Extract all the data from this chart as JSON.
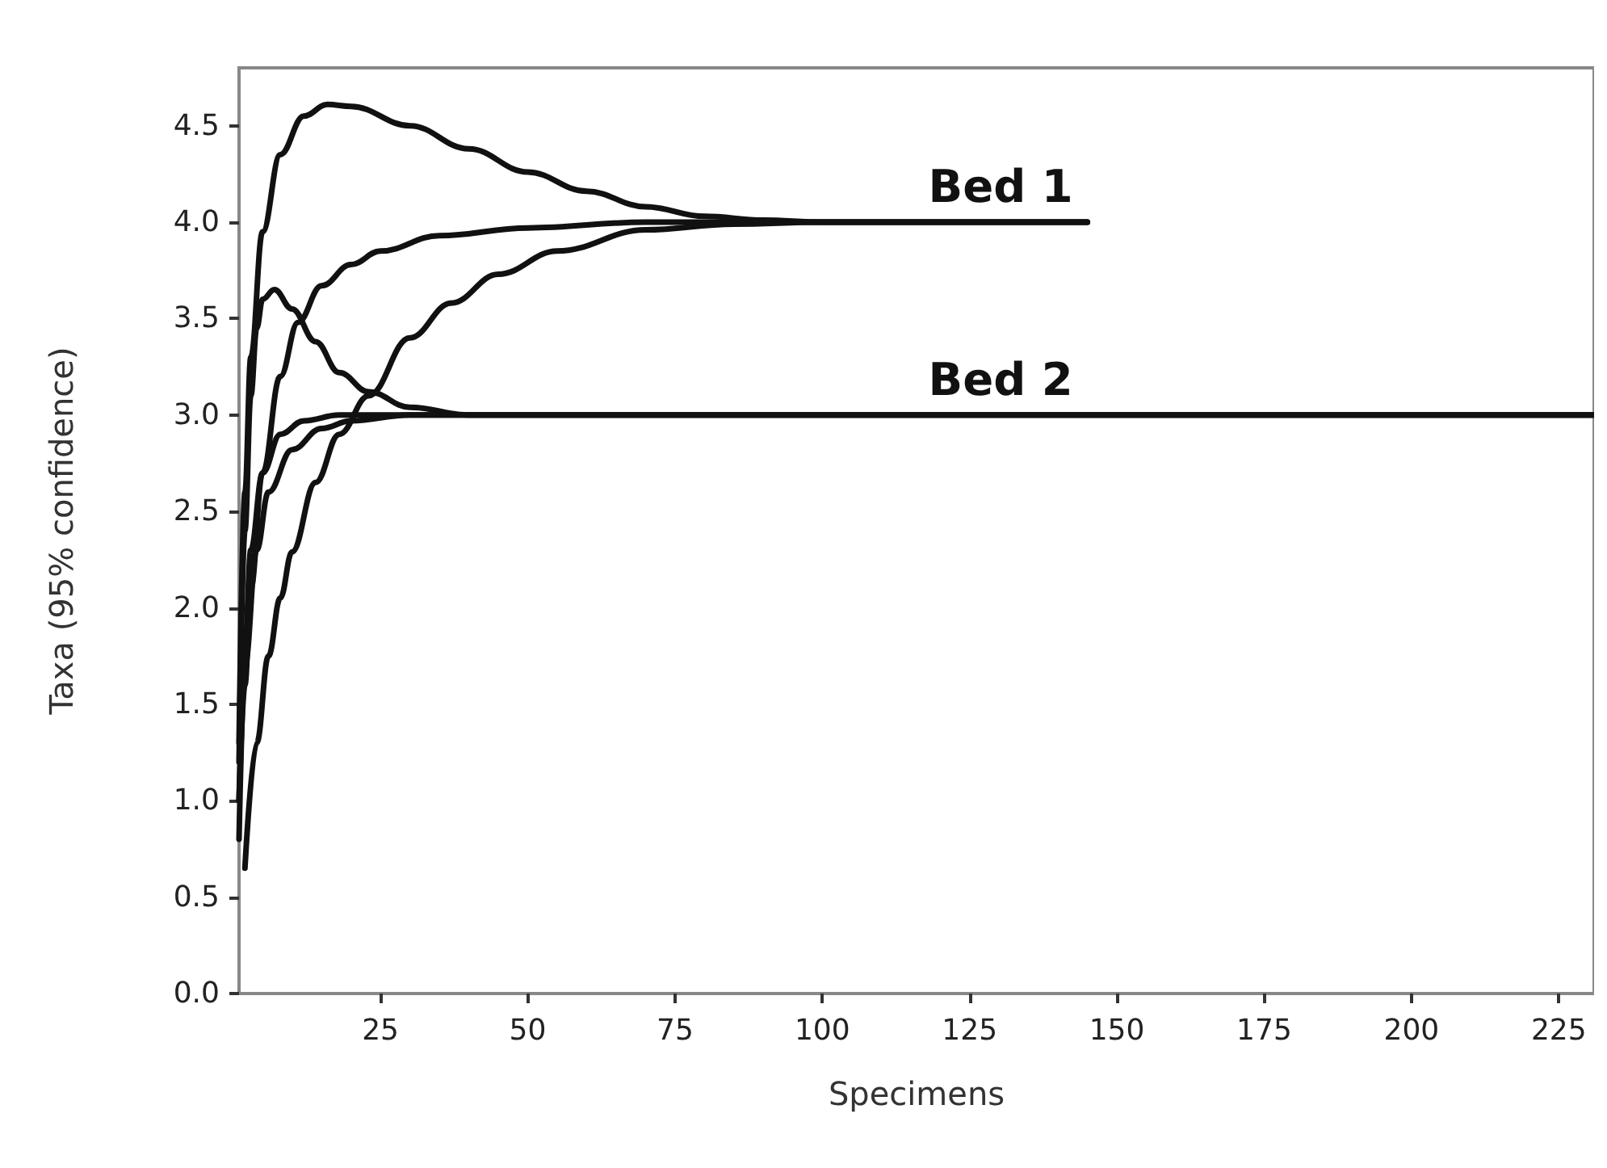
{
  "chart_data": {
    "type": "line",
    "xlabel": "Specimens",
    "ylabel": "Taxa (95% confidence)",
    "xlim": [
      1,
      231
    ],
    "xticks": [
      25,
      50,
      75,
      100,
      125,
      150,
      175,
      200,
      225
    ],
    "ylim": [
      0,
      4.8
    ],
    "yticks": [
      {
        "value": 0,
        "label": "0.0"
      },
      {
        "value": 0.5,
        "label": "0.5"
      },
      {
        "value": 1,
        "label": "1.0"
      },
      {
        "value": 1.5,
        "label": "1.5"
      },
      {
        "value": 2,
        "label": "2.0"
      },
      {
        "value": 2.5,
        "label": "2.5"
      },
      {
        "value": 3,
        "label": "3.0"
      },
      {
        "value": 3.5,
        "label": "3.5"
      },
      {
        "value": 4,
        "label": "4.0"
      },
      {
        "value": 4.5,
        "label": "4.5"
      }
    ],
    "marker": "none",
    "line_style": "solid",
    "series": [
      {
        "color": "#111111",
        "x": [
          1,
          2,
          3,
          5,
          8,
          12,
          16,
          20,
          30,
          40,
          50,
          60,
          70,
          80,
          90,
          100,
          145
        ],
        "values": [
          1.3,
          2.6,
          3.3,
          3.95,
          4.35,
          4.55,
          4.61,
          4.6,
          4.5,
          4.38,
          4.26,
          4.16,
          4.08,
          4.03,
          4.01,
          4.0,
          4.0
        ]
      },
      {
        "color": "#111111",
        "x": [
          1,
          2,
          3,
          5,
          8,
          11,
          15,
          20,
          25,
          35,
          50,
          70,
          145
        ],
        "values": [
          1.0,
          1.6,
          2.1,
          2.7,
          3.2,
          3.48,
          3.67,
          3.78,
          3.85,
          3.93,
          3.97,
          4.0,
          4.0
        ]
      },
      {
        "color": "#111111",
        "x": [
          2,
          4,
          6,
          8,
          10,
          14,
          18,
          23,
          30,
          37,
          45,
          55,
          70,
          85,
          100,
          145
        ],
        "values": [
          0.65,
          1.3,
          1.75,
          2.05,
          2.29,
          2.65,
          2.9,
          3.1,
          3.4,
          3.58,
          3.73,
          3.85,
          3.96,
          3.99,
          4.0,
          4.0
        ]
      },
      {
        "color": "#111111",
        "x": [
          1,
          2,
          3,
          4,
          5,
          7,
          10,
          14,
          18,
          23,
          30,
          40,
          231
        ],
        "values": [
          1.2,
          2.4,
          3.1,
          3.45,
          3.6,
          3.65,
          3.55,
          3.38,
          3.22,
          3.12,
          3.04,
          3.0,
          3.0
        ]
      },
      {
        "color": "#111111",
        "x": [
          1,
          2,
          3,
          5,
          8,
          12,
          18,
          231
        ],
        "values": [
          1.0,
          1.8,
          2.3,
          2.7,
          2.9,
          2.97,
          3.0,
          3.0
        ]
      },
      {
        "color": "#111111",
        "x": [
          1,
          2,
          4,
          6,
          10,
          15,
          20,
          30,
          231
        ],
        "values": [
          0.8,
          1.7,
          2.3,
          2.6,
          2.82,
          2.93,
          2.97,
          3.0,
          3.0
        ]
      }
    ],
    "annotations": [
      {
        "text": "Bed 1",
        "x": 118,
        "y": 4.0
      },
      {
        "text": "Bed 2",
        "x": 118,
        "y": 3.0
      }
    ]
  }
}
